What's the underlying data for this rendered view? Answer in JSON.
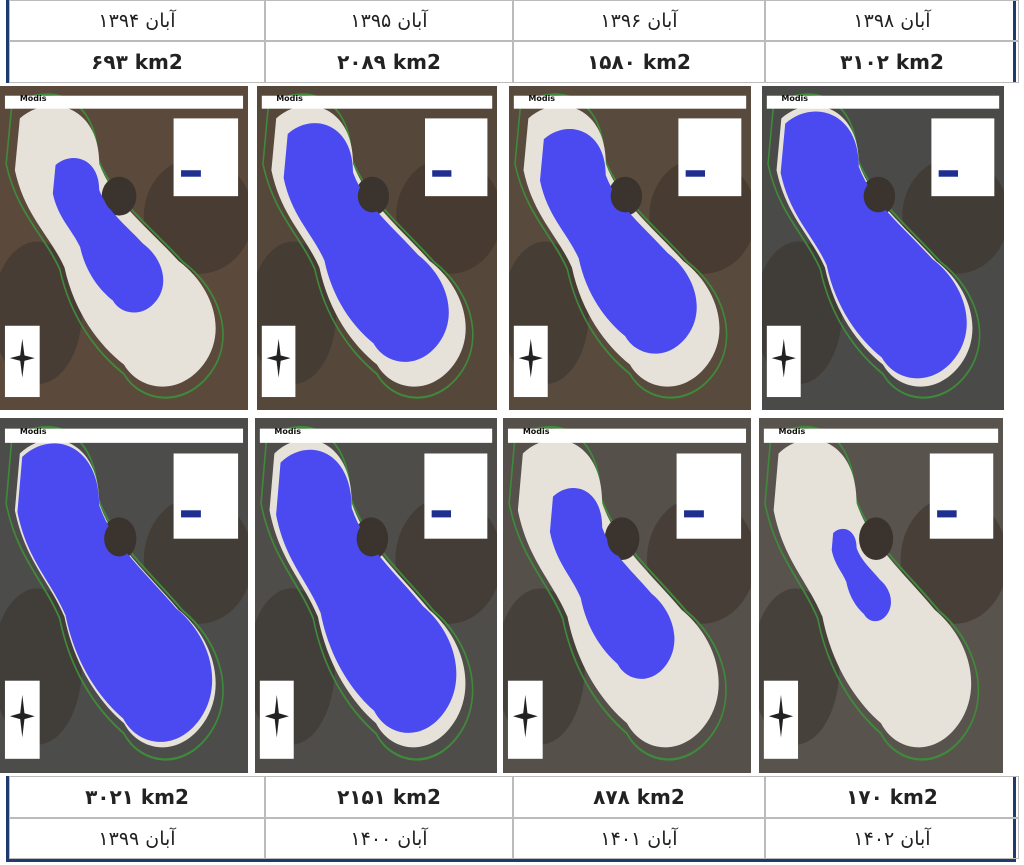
{
  "top": {
    "columns": [
      {
        "date": "آبان ۱۳۹۴",
        "area": "۶۹۳ km2"
      },
      {
        "date": "آبان ۱۳۹۵",
        "area": "۲۰۸۹ km2"
      },
      {
        "date": "آبان ۱۳۹۶",
        "area": "۱۵۸۰ km2"
      },
      {
        "date": "آبان ۱۳۹۸",
        "area": "۳۱۰۲ km2"
      }
    ]
  },
  "maps": [
    {
      "label": "Modis"
    },
    {
      "label": "Modis"
    },
    {
      "label": "Modis"
    },
    {
      "label": "Modis"
    },
    {
      "label": "Modis"
    },
    {
      "label": "Modis"
    },
    {
      "label": "Modis"
    },
    {
      "label": "Modis"
    }
  ],
  "bottom": {
    "columns": [
      {
        "area": "۳۰۲۱ km2",
        "date": "آبان ۱۳۹۹"
      },
      {
        "area": "۲۱۵۱ km2",
        "date": "آبان ۱۴۰۰"
      },
      {
        "area": "۸۷۸ km2",
        "date": "آبان ۱۴۰۱"
      },
      {
        "area": "۱۷۰ km2",
        "date": "آبان ۱۴۰۲"
      }
    ]
  }
}
